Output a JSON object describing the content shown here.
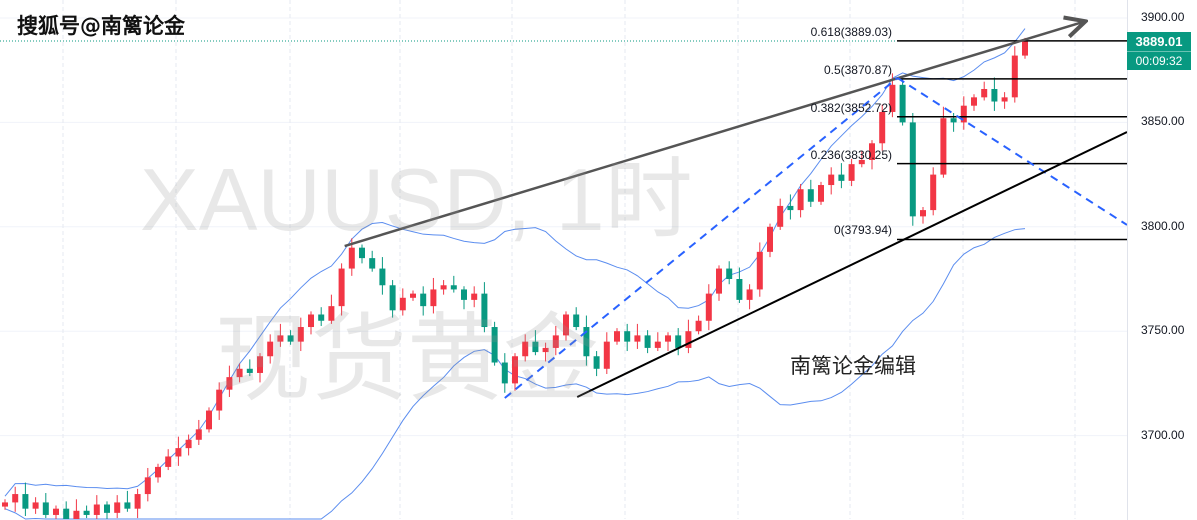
{
  "header": {
    "title": "搜狐号@南篱论金"
  },
  "watermark": {
    "symbol": "XAUUSD, 1时",
    "name": "现货黄金"
  },
  "annotation": {
    "editor": "南篱论金编辑"
  },
  "price_label": {
    "price": "3889.01",
    "countdown": "00:09:32",
    "color": "#089981"
  },
  "colors": {
    "up": "#f23645",
    "down": "#089981",
    "bands": "#5b8def",
    "trend": "#555555",
    "dashed": "#2962ff",
    "support": "#000000"
  },
  "chart_data": {
    "type": "candlestick",
    "symbol": "XAUUSD",
    "timeframe": "1时",
    "ylim": [
      3655,
      3905
    ],
    "yticks": [
      "3900.00",
      "3850.00",
      "3800.00",
      "3750.00",
      "3700.00"
    ],
    "ytick_values": [
      3900,
      3850,
      3800,
      3750,
      3700
    ],
    "grid": true,
    "indicator": "Bollinger Bands (20, 2)",
    "closes": [
      3668,
      3672,
      3665,
      3668,
      3662,
      3665,
      3660,
      3664,
      3662,
      3667,
      3663,
      3668,
      3665,
      3672,
      3680,
      3685,
      3690,
      3694,
      3698,
      3703,
      3712,
      3722,
      3728,
      3732,
      3730,
      3738,
      3745,
      3748,
      3745,
      3752,
      3758,
      3755,
      3762,
      3780,
      3790,
      3785,
      3780,
      3772,
      3760,
      3766,
      3768,
      3762,
      3770,
      3772,
      3770,
      3765,
      3768,
      3752,
      3735,
      3725,
      3738,
      3745,
      3740,
      3742,
      3748,
      3758,
      3752,
      3738,
      3732,
      3745,
      3750,
      3745,
      3748,
      3742,
      3745,
      3748,
      3742,
      3750,
      3755,
      3768,
      3780,
      3775,
      3765,
      3770,
      3788,
      3800,
      3810,
      3808,
      3818,
      3812,
      3820,
      3825,
      3822,
      3830,
      3832,
      3840,
      3855,
      3868,
      3850,
      3805,
      3808,
      3825,
      3852,
      3850,
      3858,
      3862,
      3866,
      3860,
      3862,
      3882,
      3889
    ],
    "fib_levels": [
      {
        "label": "0.618(3889.03)",
        "value": 3889.03
      },
      {
        "label": "0.5(3870.87)",
        "value": 3870.87
      },
      {
        "label": "0.382(3852.72)",
        "value": 3852.72
      },
      {
        "label": "0.236(3830.25)",
        "value": 3830.25
      },
      {
        "label": "0(3793.94)",
        "value": 3793.94
      }
    ],
    "trendlines": [
      {
        "kind": "resistance-arrow",
        "from": [
          33.3,
          3790.8
        ],
        "to": [
          105.7,
          3898.1
        ]
      },
      {
        "kind": "dashed-up",
        "from": [
          49,
          3718
        ],
        "to": [
          87.5,
          3871.3
        ]
      },
      {
        "kind": "dashed-down",
        "from": [
          87.5,
          3871.3
        ],
        "to": [
          110,
          3800.9
        ]
      },
      {
        "kind": "support",
        "from": [
          56.1,
          3718.5
        ],
        "to": [
          110,
          3845.4
        ]
      }
    ]
  }
}
